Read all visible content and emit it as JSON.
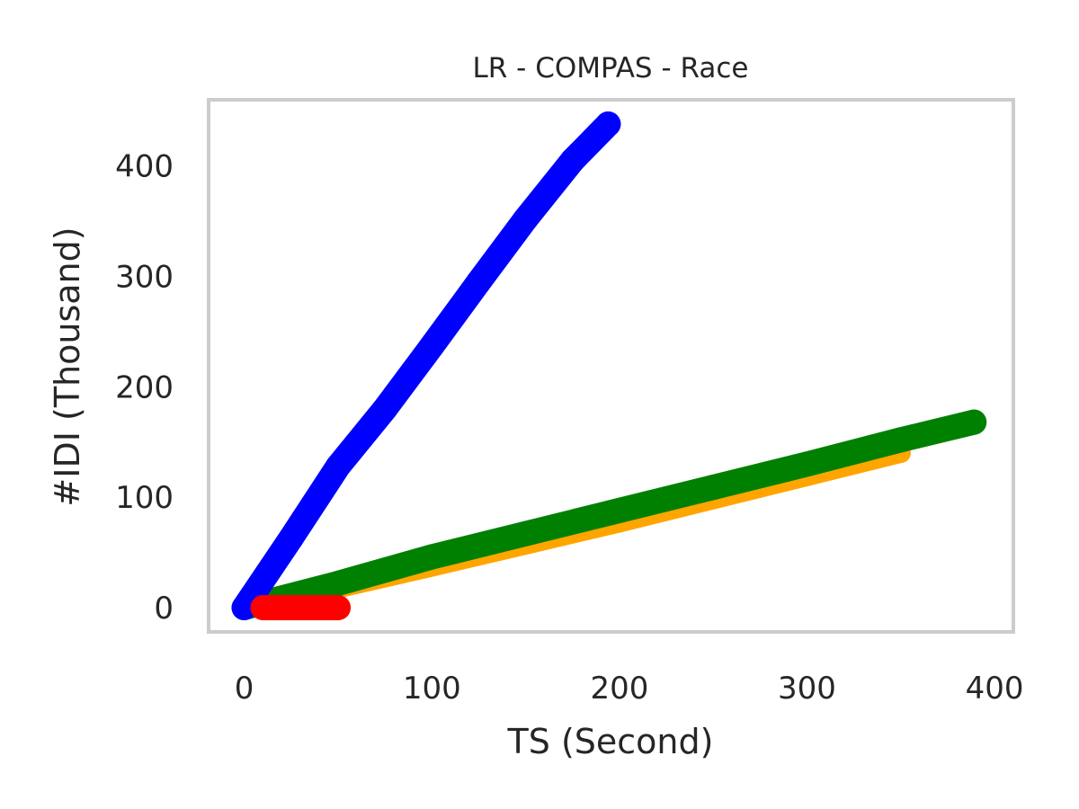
{
  "chart_data": {
    "type": "scatter",
    "title": "LR - COMPAS - Race",
    "xlabel": "TS (Second)",
    "ylabel": "#IDI (Thousand)",
    "xlim": [
      -19,
      410
    ],
    "ylim": [
      -22,
      460
    ],
    "xticks": [
      0,
      100,
      200,
      300,
      400
    ],
    "yticks": [
      0,
      100,
      200,
      300,
      400
    ],
    "xtick_labels": [
      "0",
      "100",
      "200",
      "300",
      "400"
    ],
    "ytick_labels": [
      "0",
      "100",
      "200",
      "300",
      "400"
    ],
    "grid": false,
    "legend": "none",
    "frame_color": "#cccccc",
    "series": [
      {
        "color": "#ffa500",
        "x": [
          0,
          50,
          100,
          150,
          200,
          250,
          300,
          350
        ],
        "y": [
          0,
          17.5,
          37,
          57,
          77,
          98,
          119,
          140
        ]
      },
      {
        "color": "#008000",
        "x": [
          0,
          50,
          100,
          150,
          200,
          250,
          300,
          350,
          389
        ],
        "y": [
          0,
          22,
          46,
          67,
          88,
          109,
          130,
          152,
          168
        ]
      },
      {
        "color": "#0000ff",
        "x": [
          0,
          25,
          50,
          75,
          100,
          125,
          150,
          175,
          194
        ],
        "y": [
          0,
          63,
          128,
          180,
          237,
          295,
          352,
          405,
          438
        ]
      },
      {
        "color": "#ff0000",
        "x": [
          10,
          15,
          20,
          25,
          30,
          35,
          40,
          45,
          50
        ],
        "y": [
          0,
          0,
          0,
          0,
          0,
          0,
          0,
          0,
          0
        ]
      }
    ]
  }
}
